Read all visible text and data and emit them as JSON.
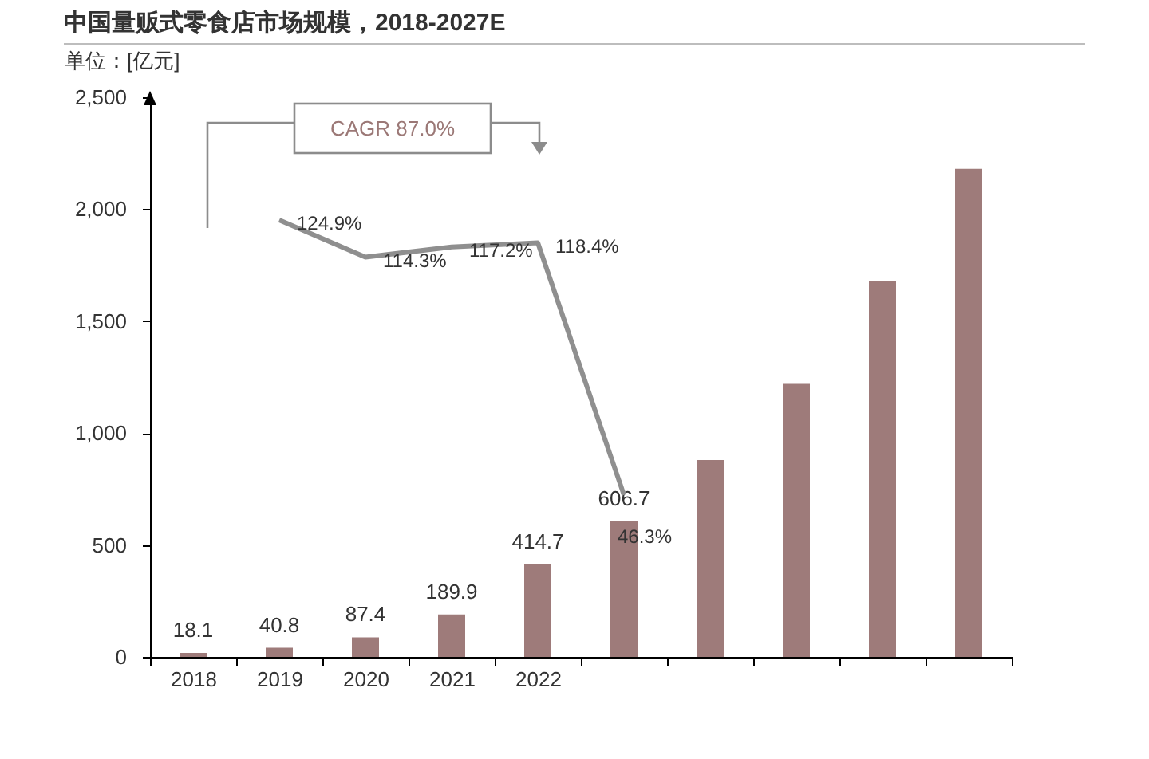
{
  "chart_data": {
    "type": "bar",
    "title": "中国量贩式零食店市场规模，2018-2027E",
    "ylabel": "单位：[亿元]",
    "annotations": [
      "CAGR 87.0%"
    ],
    "categories": [
      "2018",
      "2019",
      "2020",
      "2021",
      "2022",
      null,
      null,
      null,
      null,
      null
    ],
    "series": [
      {
        "color": "#9e7b7a",
        "values": [
          18.1,
          40.8,
          87.4,
          189.9,
          414.7,
          606.7,
          880,
          1220,
          1680,
          2180
        ],
        "value_labels": [
          "18.1",
          "40.8",
          "87.4",
          "189.9",
          "414.7",
          "606.7",
          null,
          null,
          null,
          null
        ]
      },
      {
        "type": "line",
        "axis": "y2",
        "color": "#8f8f8f",
        "values": [
          null,
          124.9,
          114.3,
          117.2,
          118.4,
          46.3,
          null,
          null,
          null,
          null
        ],
        "value_labels": [
          null,
          "124.9%",
          "114.3%",
          "117.2%",
          "118.4%",
          "46.3%",
          null,
          null,
          null,
          null
        ]
      }
    ],
    "ylim": [
      0,
      2500
    ],
    "yticks": [
      0,
      500,
      {
        "value": 1000,
        "label": "1,000"
      },
      {
        "value": 1500,
        "label": "1,500"
      },
      {
        "value": 2000,
        "label": "2,000"
      },
      {
        "value": 2500,
        "label": "2,500"
      }
    ],
    "y2lim": [
      0,
      160
    ],
    "grid": false
  }
}
